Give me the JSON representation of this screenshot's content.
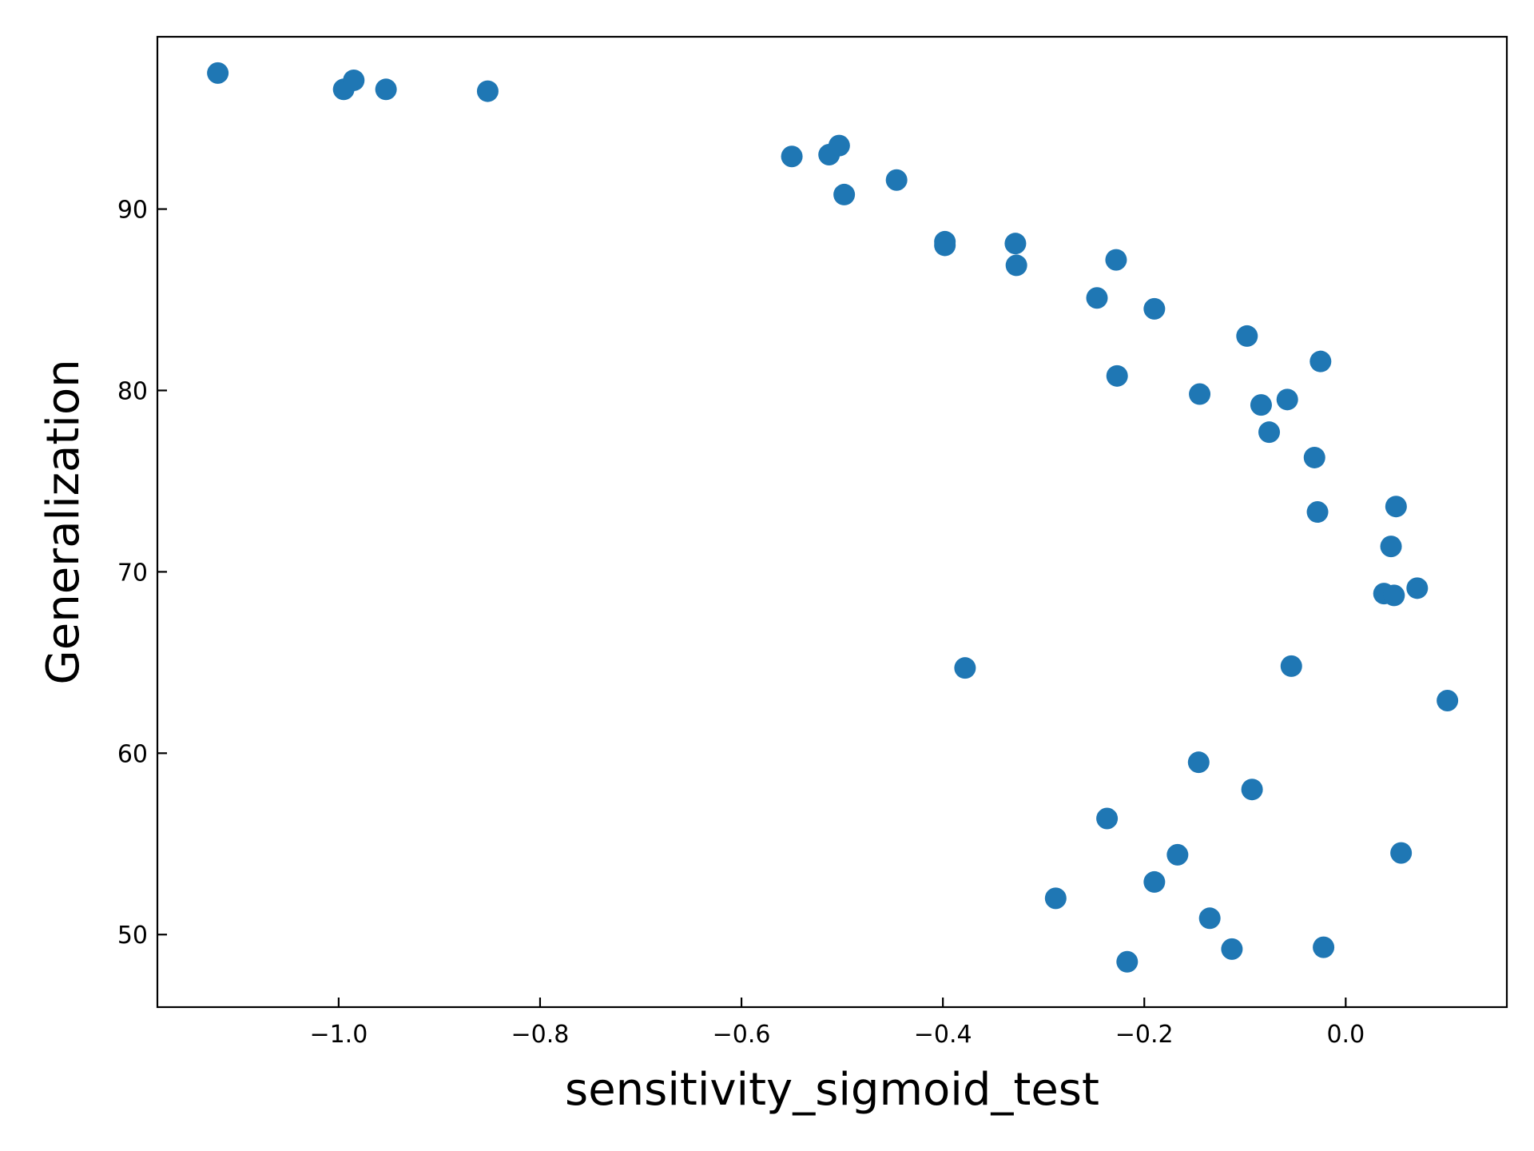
{
  "chart_data": {
    "type": "scatter",
    "xlabel": "sensitivity_sigmoid_test",
    "ylabel": "Generalization",
    "xlim": [
      -1.18,
      0.16
    ],
    "ylim": [
      46.0,
      99.5
    ],
    "xticks": [
      -1.0,
      -0.8,
      -0.6,
      -0.4,
      -0.2,
      0.0
    ],
    "xtick_labels": [
      "−1.0",
      "−0.8",
      "−0.6",
      "−0.4",
      "−0.2",
      "0.0"
    ],
    "yticks": [
      50,
      60,
      70,
      80,
      90
    ],
    "ytick_labels": [
      "50",
      "60",
      "70",
      "80",
      "90"
    ],
    "grid": false,
    "marker_color": "#1f77b4",
    "points": [
      {
        "x": -1.12,
        "y": 97.5
      },
      {
        "x": -0.995,
        "y": 96.6
      },
      {
        "x": -0.985,
        "y": 97.1
      },
      {
        "x": -0.953,
        "y": 96.6
      },
      {
        "x": -0.852,
        "y": 96.5
      },
      {
        "x": -0.55,
        "y": 92.9
      },
      {
        "x": -0.513,
        "y": 93.0
      },
      {
        "x": -0.503,
        "y": 93.5
      },
      {
        "x": -0.498,
        "y": 90.8
      },
      {
        "x": -0.446,
        "y": 91.6
      },
      {
        "x": -0.398,
        "y": 88.2
      },
      {
        "x": -0.398,
        "y": 88.0
      },
      {
        "x": -0.328,
        "y": 88.1
      },
      {
        "x": -0.327,
        "y": 86.9
      },
      {
        "x": -0.378,
        "y": 64.7
      },
      {
        "x": -0.288,
        "y": 52.0
      },
      {
        "x": -0.247,
        "y": 85.1
      },
      {
        "x": -0.228,
        "y": 87.2
      },
      {
        "x": -0.227,
        "y": 80.8
      },
      {
        "x": -0.237,
        "y": 56.4
      },
      {
        "x": -0.217,
        "y": 48.5
      },
      {
        "x": -0.19,
        "y": 84.5
      },
      {
        "x": -0.19,
        "y": 52.9
      },
      {
        "x": -0.167,
        "y": 54.4
      },
      {
        "x": -0.145,
        "y": 79.8
      },
      {
        "x": -0.146,
        "y": 59.5
      },
      {
        "x": -0.135,
        "y": 50.9
      },
      {
        "x": -0.113,
        "y": 49.2
      },
      {
        "x": -0.098,
        "y": 83.0
      },
      {
        "x": -0.093,
        "y": 58.0
      },
      {
        "x": -0.084,
        "y": 79.2
      },
      {
        "x": -0.076,
        "y": 77.7
      },
      {
        "x": -0.058,
        "y": 79.5
      },
      {
        "x": -0.054,
        "y": 64.8
      },
      {
        "x": -0.031,
        "y": 76.3
      },
      {
        "x": -0.028,
        "y": 73.3
      },
      {
        "x": -0.025,
        "y": 81.6
      },
      {
        "x": -0.022,
        "y": 49.3
      },
      {
        "x": 0.038,
        "y": 68.8
      },
      {
        "x": 0.045,
        "y": 71.4
      },
      {
        "x": 0.048,
        "y": 68.7
      },
      {
        "x": 0.05,
        "y": 73.6
      },
      {
        "x": 0.055,
        "y": 54.5
      },
      {
        "x": 0.071,
        "y": 69.1
      },
      {
        "x": 0.101,
        "y": 62.9
      }
    ]
  }
}
